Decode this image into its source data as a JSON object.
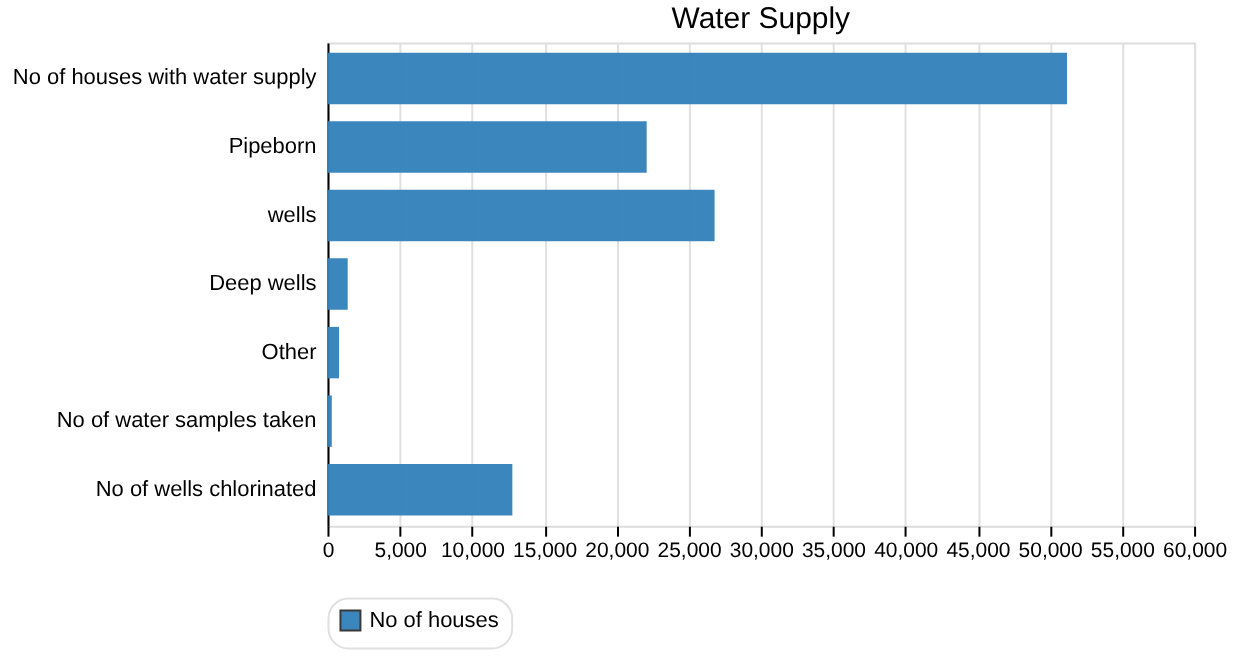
{
  "chart_data": {
    "type": "bar",
    "orientation": "horizontal",
    "title": "Water Supply",
    "categories": [
      "No of houses with water supply",
      "Pipeborn",
      "wells",
      "Deep wells",
      "Other",
      "No of water samples taken",
      "No of wells chlorinated"
    ],
    "series": [
      {
        "name": "No of houses",
        "color": "#3583bb",
        "values": [
          51200,
          22100,
          26800,
          1400,
          800,
          300,
          12800
        ]
      }
    ],
    "xlim": [
      0,
      60000
    ],
    "xticks": [
      0,
      {
        "value": 5000,
        "label": "5,000"
      },
      {
        "value": 10000,
        "label": "10,000"
      },
      {
        "value": 15000,
        "label": "15,000"
      },
      {
        "value": 20000,
        "label": "20,000"
      },
      {
        "value": 25000,
        "label": "25,000"
      },
      {
        "value": 30000,
        "label": "30,000"
      },
      {
        "value": 35000,
        "label": "35,000"
      },
      {
        "value": 40000,
        "label": "40,000"
      },
      {
        "value": 45000,
        "label": "45,000"
      },
      {
        "value": 50000,
        "label": "50,000"
      },
      {
        "value": 55000,
        "label": "55,000"
      },
      {
        "value": 60000,
        "label": "60,000"
      }
    ],
    "grid": "x",
    "legend": "bottom"
  }
}
